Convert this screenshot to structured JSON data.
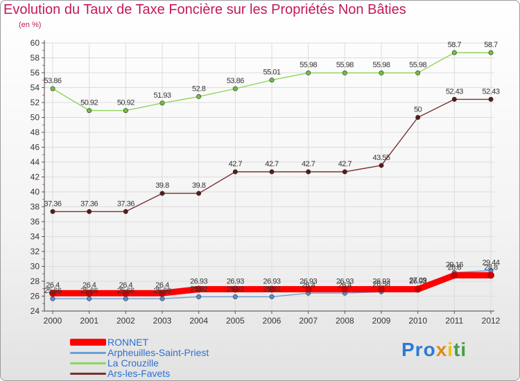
{
  "title": "Evolution du Taux de Taxe Foncière sur les Propriétés Non Bâties",
  "unit": "(en %)",
  "logo": {
    "text": [
      "Pro",
      "x",
      "i",
      "ti"
    ]
  },
  "chart_data": {
    "type": "line",
    "x": [
      "2000",
      "2001",
      "2002",
      "2003",
      "2004",
      "2005",
      "2006",
      "2007",
      "2008",
      "2009",
      "2010",
      "2011",
      "2012"
    ],
    "ylim": [
      24,
      60
    ],
    "yticks": [
      "24",
      "26",
      "28",
      "30",
      "32",
      "34",
      "36",
      "38",
      "40",
      "42",
      "44",
      "46",
      "48",
      "50",
      "52",
      "54",
      "56",
      "58",
      "60"
    ],
    "grid": true,
    "legend_position": "bottom-left",
    "series": [
      {
        "name": "RONNET",
        "color": "#ff0000",
        "values": [
          26.4,
          26.4,
          26.4,
          26.4,
          26.93,
          26.93,
          26.93,
          26.93,
          26.93,
          26.93,
          26.93,
          28.8,
          28.8
        ],
        "labels": [
          "26.4",
          "26.4",
          "26.4",
          "26.4",
          "26.93",
          "26.93",
          "26.93",
          "26.93",
          "26.93",
          "26.93",
          "26.93",
          "28.8",
          "28.8"
        ]
      },
      {
        "name": "Arpheuilles-Saint-Priest",
        "color": "#6a9fd4",
        "values": [
          25.66,
          25.66,
          25.66,
          25.66,
          25.92,
          25.92,
          25.92,
          26.4,
          26.4,
          26.58,
          27.09,
          29.16,
          29.44
        ],
        "labels": [
          "25.66",
          "25.66",
          "25.66",
          "25.66",
          "25.92",
          "25.92",
          "25.92",
          "26.4",
          "26.4",
          "26.58",
          "27.09",
          "29.16",
          "29.44"
        ]
      },
      {
        "name": "La Crouzille",
        "color": "#8ed45a",
        "values": [
          53.86,
          50.92,
          50.92,
          51.93,
          52.8,
          53.86,
          55.01,
          55.98,
          55.98,
          55.98,
          55.98,
          58.7,
          58.7
        ],
        "labels": [
          "53.86",
          "50.92",
          "50.92",
          "51.93",
          "52.8",
          "53.86",
          "55.01",
          "55.98",
          "55.98",
          "55.98",
          "55.98",
          "58.7",
          "58.7"
        ]
      },
      {
        "name": "Ars-les-Favets",
        "color": "#7a2e2e",
        "values": [
          37.36,
          37.36,
          37.36,
          39.8,
          39.8,
          42.7,
          42.7,
          42.7,
          42.7,
          43.55,
          50,
          52.43,
          52.43
        ],
        "labels": [
          "37.36",
          "37.36",
          "37.36",
          "39.8",
          "39.8",
          "42.7",
          "42.7",
          "42.7",
          "42.7",
          "43.55",
          "50",
          "52.43",
          "52.43"
        ]
      }
    ]
  }
}
